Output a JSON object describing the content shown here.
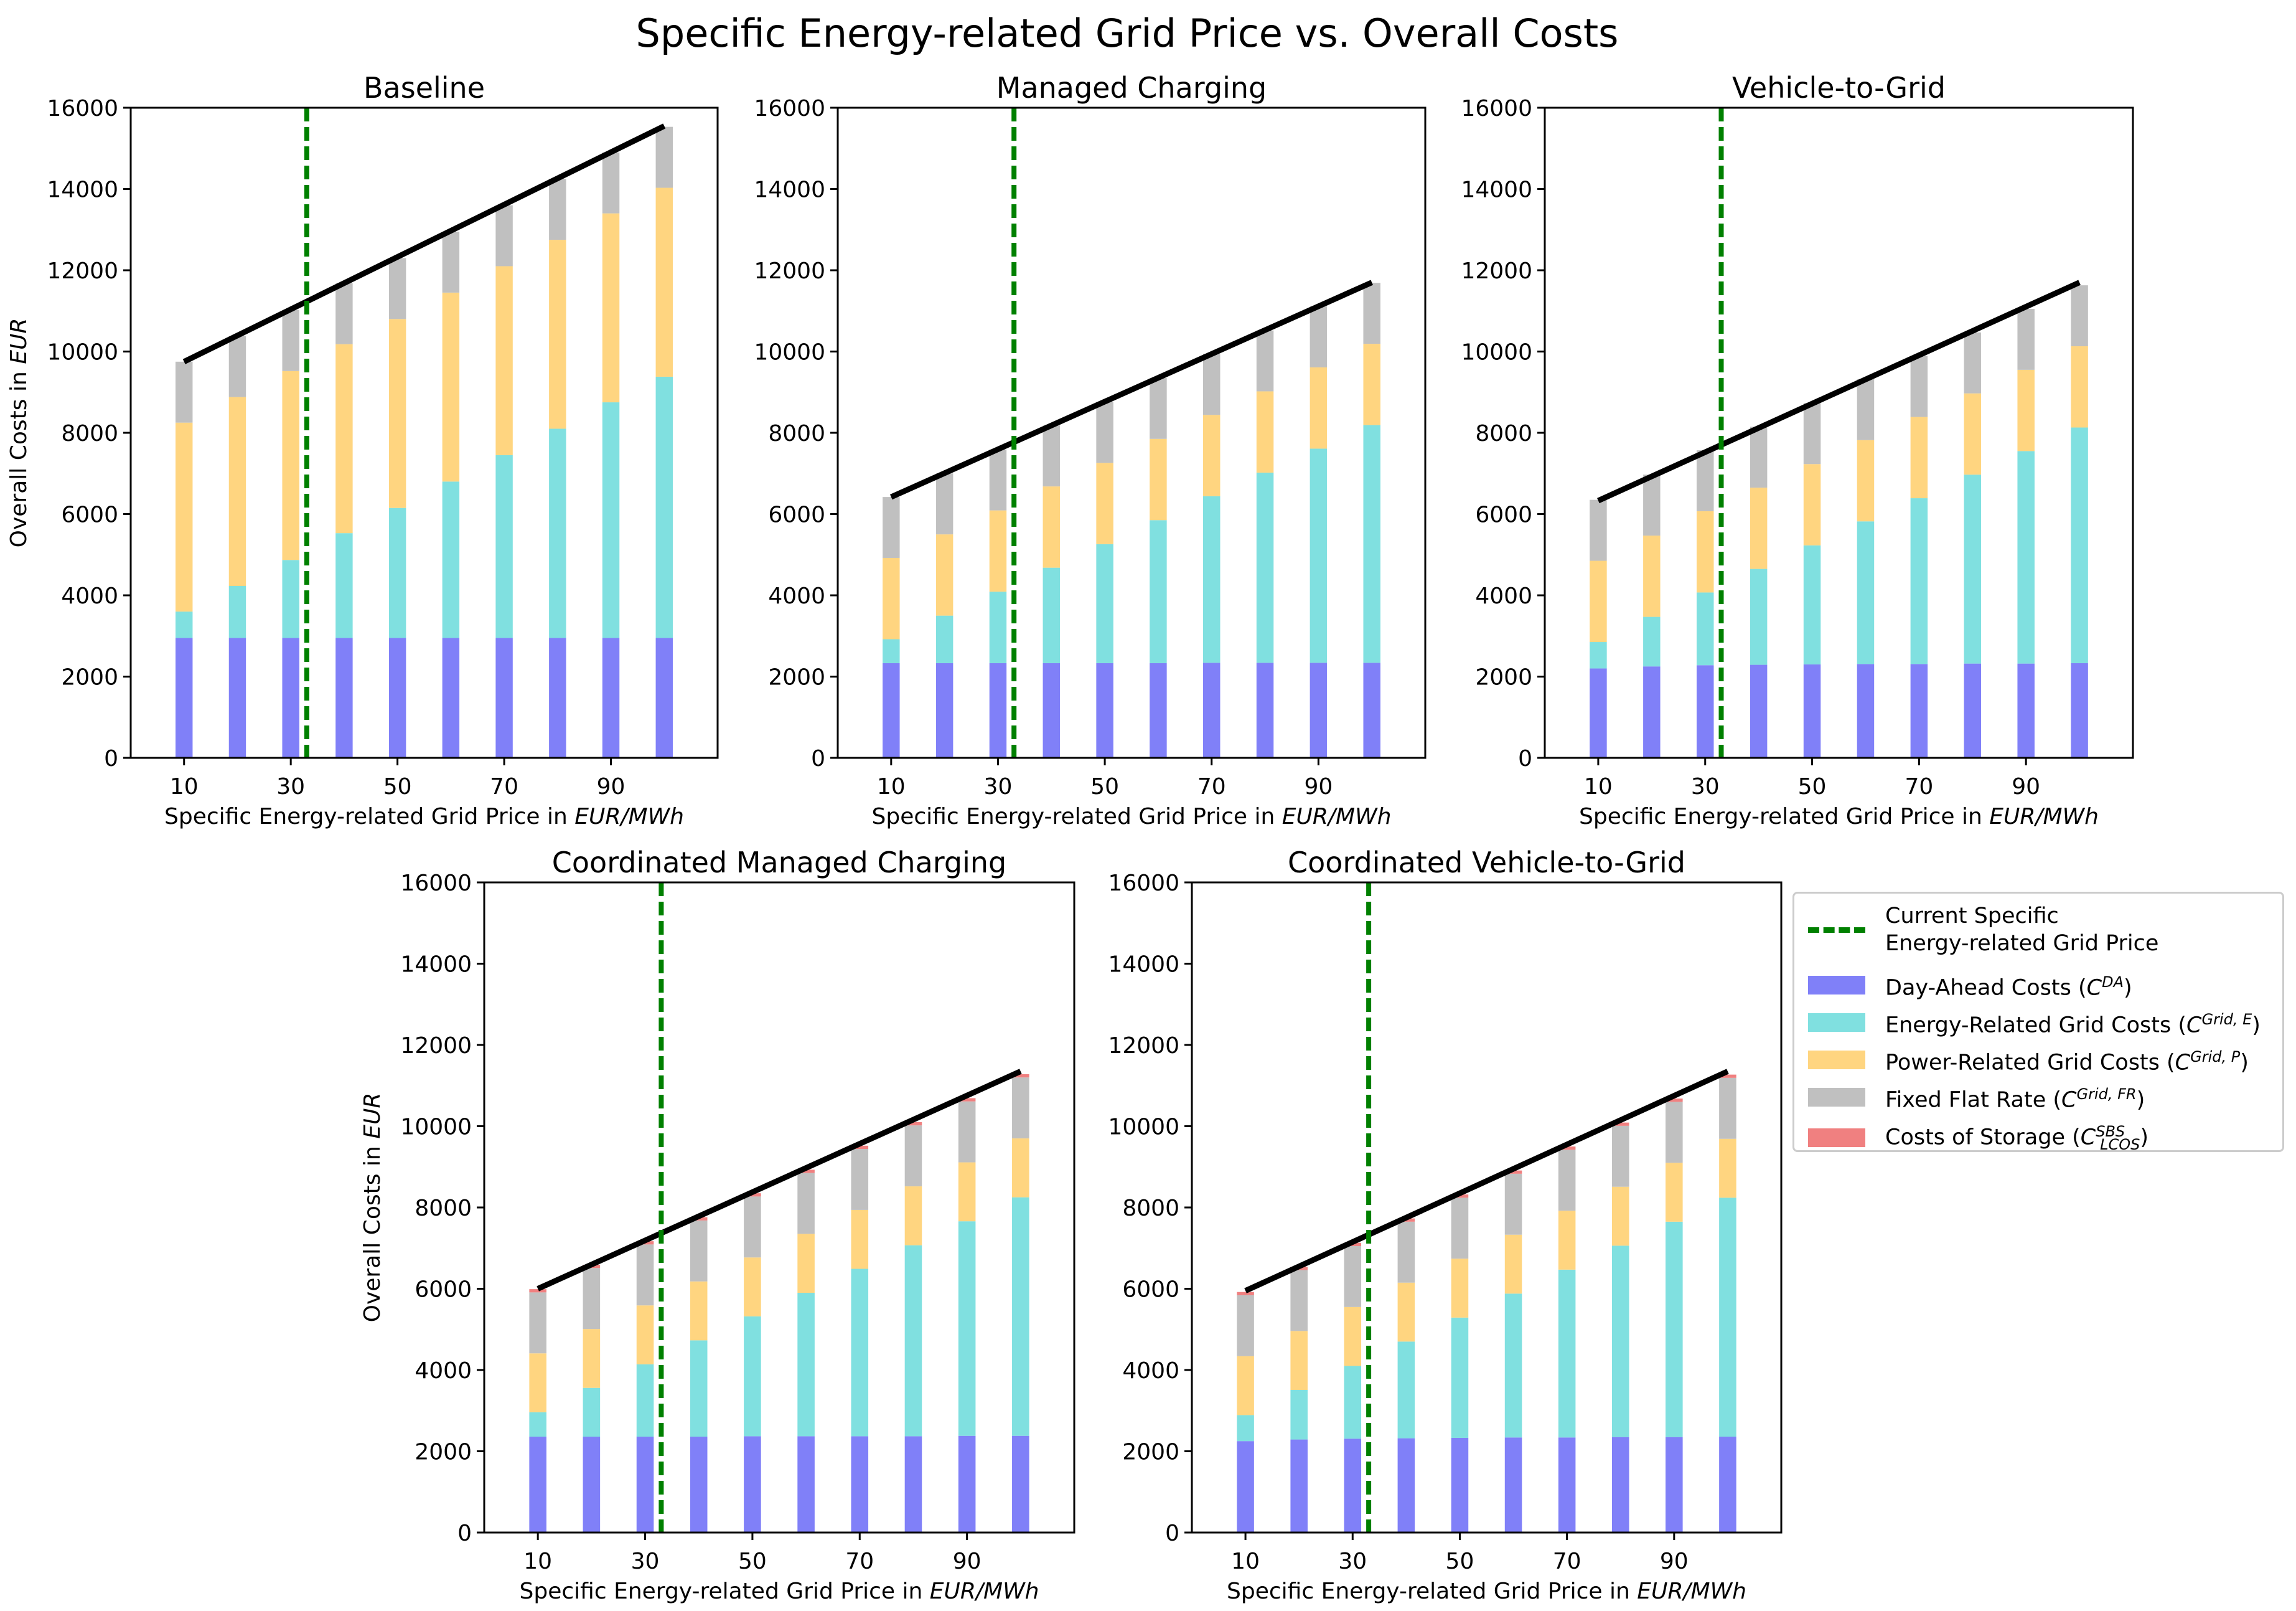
{
  "chart_data": {
    "type": "bar",
    "title": "Specific Energy-related Grid Price vs. Overall Costs",
    "xlabel": "Specific Energy-related Grid Price in EUR/MWh",
    "ylabel": "Overall Costs in EUR",
    "ylim": [
      0,
      16000
    ],
    "yticks": [
      0,
      2000,
      4000,
      6000,
      8000,
      10000,
      12000,
      14000,
      16000
    ],
    "xticks": [
      10,
      30,
      50,
      70,
      90
    ],
    "categories": [
      10,
      20,
      30,
      40,
      50,
      60,
      70,
      80,
      90,
      100
    ],
    "current_grid_price": 33,
    "colors": {
      "day_ahead": "#8080f8",
      "energy_grid": "#80e0e0",
      "power_grid": "#ffd580",
      "fixed_flat": "#c0c0c0",
      "storage": "#f08080",
      "trend": "#000000",
      "current_price": "#008000"
    },
    "panels": [
      {
        "title": "Baseline",
        "series": [
          {
            "name": "Day-Ahead Costs",
            "key": "day_ahead",
            "values": [
              2950,
              2950,
              2950,
              2950,
              2950,
              2950,
              2950,
              2950,
              2950,
              2950
            ]
          },
          {
            "name": "Energy-Related Grid Costs",
            "key": "energy_grid",
            "values": [
              650,
              1280,
              1920,
              2580,
              3200,
              3850,
              4500,
              5150,
              5800,
              6430
            ]
          },
          {
            "name": "Power-Related Grid Costs",
            "key": "power_grid",
            "values": [
              4650,
              4650,
              4650,
              4650,
              4650,
              4650,
              4650,
              4650,
              4650,
              4650
            ]
          },
          {
            "name": "Fixed Flat Rate",
            "key": "fixed_flat",
            "values": [
              1500,
              1500,
              1500,
              1500,
              1500,
              1500,
              1500,
              1500,
              1500,
              1500
            ]
          },
          {
            "name": "Costs of Storage",
            "key": "storage",
            "values": [
              0,
              0,
              0,
              0,
              0,
              0,
              0,
              0,
              0,
              0
            ]
          }
        ],
        "trend": [
          9750,
          15550
        ]
      },
      {
        "title": "Managed Charging",
        "series": [
          {
            "name": "Day-Ahead Costs",
            "key": "day_ahead",
            "values": [
              2330,
              2330,
              2330,
              2330,
              2330,
              2330,
              2340,
              2340,
              2340,
              2340
            ]
          },
          {
            "name": "Energy-Related Grid Costs",
            "key": "energy_grid",
            "values": [
              590,
              1170,
              1760,
              2350,
              2930,
              3520,
              4100,
              4680,
              5270,
              5850
            ]
          },
          {
            "name": "Power-Related Grid Costs",
            "key": "power_grid",
            "values": [
              2000,
              2000,
              2000,
              2000,
              2000,
              2000,
              2000,
              2000,
              2000,
              2000
            ]
          },
          {
            "name": "Fixed Flat Rate",
            "key": "fixed_flat",
            "values": [
              1500,
              1500,
              1500,
              1500,
              1500,
              1500,
              1500,
              1500,
              1500,
              1500
            ]
          },
          {
            "name": "Costs of Storage",
            "key": "storage",
            "values": [
              0,
              0,
              0,
              0,
              0,
              0,
              0,
              0,
              0,
              0
            ]
          }
        ],
        "trend": [
          6420,
          11700
        ]
      },
      {
        "title": "Vehicle-to-Grid",
        "series": [
          {
            "name": "Day-Ahead Costs",
            "key": "day_ahead",
            "values": [
              2200,
              2250,
              2280,
              2290,
              2300,
              2310,
              2310,
              2320,
              2320,
              2330
            ]
          },
          {
            "name": "Energy-Related Grid Costs",
            "key": "energy_grid",
            "values": [
              650,
              1220,
              1790,
              2360,
              2930,
              3510,
              4080,
              4650,
              5230,
              5800
            ]
          },
          {
            "name": "Power-Related Grid Costs",
            "key": "power_grid",
            "values": [
              2000,
              2000,
              2000,
              2000,
              2000,
              2000,
              2000,
              2000,
              2000,
              2000
            ]
          },
          {
            "name": "Fixed Flat Rate",
            "key": "fixed_flat",
            "values": [
              1500,
              1500,
              1500,
              1500,
              1500,
              1500,
              1500,
              1500,
              1500,
              1500
            ]
          },
          {
            "name": "Costs of Storage",
            "key": "storage",
            "values": [
              0,
              0,
              0,
              0,
              0,
              0,
              0,
              0,
              0,
              0
            ]
          }
        ],
        "trend": [
          6330,
          11700
        ]
      },
      {
        "title": "Coordinated Managed Charging",
        "series": [
          {
            "name": "Day-Ahead Costs",
            "key": "day_ahead",
            "values": [
              2360,
              2360,
              2360,
              2360,
              2370,
              2370,
              2370,
              2370,
              2380,
              2380
            ]
          },
          {
            "name": "Energy-Related Grid Costs",
            "key": "energy_grid",
            "values": [
              600,
              1200,
              1780,
              2370,
              2950,
              3530,
              4120,
              4700,
              5280,
              5870
            ]
          },
          {
            "name": "Power-Related Grid Costs",
            "key": "power_grid",
            "values": [
              1450,
              1450,
              1450,
              1450,
              1450,
              1450,
              1450,
              1450,
              1450,
              1450
            ]
          },
          {
            "name": "Fixed Flat Rate",
            "key": "fixed_flat",
            "values": [
              1500,
              1500,
              1500,
              1500,
              1500,
              1500,
              1500,
              1500,
              1500,
              1500
            ]
          },
          {
            "name": "Costs of Storage",
            "key": "storage",
            "values": [
              80,
              80,
              80,
              80,
              80,
              80,
              80,
              80,
              80,
              80
            ]
          }
        ],
        "trend": [
          6000,
          11350
        ]
      },
      {
        "title": "Coordinated Vehicle-to-Grid",
        "series": [
          {
            "name": "Day-Ahead Costs",
            "key": "day_ahead",
            "values": [
              2250,
              2290,
              2310,
              2320,
              2330,
              2340,
              2340,
              2350,
              2350,
              2360
            ]
          },
          {
            "name": "Energy-Related Grid Costs",
            "key": "energy_grid",
            "values": [
              640,
              1220,
              1790,
              2380,
              2960,
              3540,
              4130,
              4710,
              5300,
              5880
            ]
          },
          {
            "name": "Power-Related Grid Costs",
            "key": "power_grid",
            "values": [
              1450,
              1450,
              1450,
              1450,
              1450,
              1450,
              1450,
              1450,
              1450,
              1450
            ]
          },
          {
            "name": "Fixed Flat Rate",
            "key": "fixed_flat",
            "values": [
              1500,
              1500,
              1500,
              1500,
              1500,
              1500,
              1500,
              1500,
              1500,
              1500
            ]
          },
          {
            "name": "Costs of Storage",
            "key": "storage",
            "values": [
              80,
              80,
              80,
              80,
              80,
              80,
              80,
              80,
              80,
              80
            ]
          }
        ],
        "trend": [
          5950,
          11350
        ]
      }
    ],
    "legend": {
      "current_price_label": "Current Specific\nEnergy-related Grid Price",
      "day_ahead_label": "Day-Ahead Costs (",
      "day_ahead_sym": "C",
      "day_ahead_sup": "DA",
      "energy_label": "Energy-Related Grid Costs (",
      "energy_sym": "C",
      "energy_sup": "Grid, E",
      "power_label": "Power-Related Grid Costs (",
      "power_sym": "C",
      "power_sup": "Grid, P",
      "fixed_label": "Fixed Flat Rate (",
      "fixed_sym": "C",
      "fixed_sup": "Grid, FR",
      "storage_label": "Costs of Storage (",
      "storage_sym": "C",
      "storage_sup": "SBS",
      "storage_sub": "LCOS",
      "close_paren": ")"
    }
  }
}
